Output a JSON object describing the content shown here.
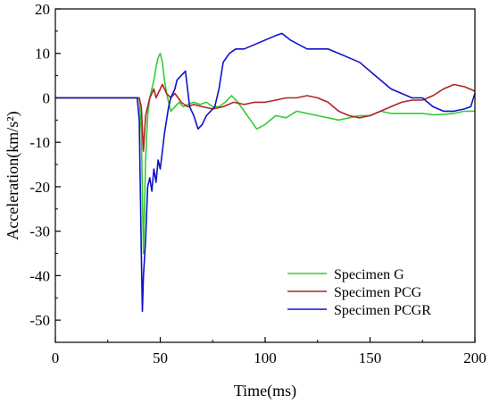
{
  "chart_data": {
    "type": "line",
    "title": "",
    "xlabel": "Time(ms)",
    "ylabel": "Acceleration(km/s²)",
    "xlim": [
      0,
      200
    ],
    "ylim": [
      -55,
      20
    ],
    "xticks": [
      0,
      50,
      100,
      150,
      200
    ],
    "yticks": [
      20,
      10,
      0,
      -10,
      -20,
      -30,
      -40,
      -50
    ],
    "grid": false,
    "legend": "bottom-right",
    "series": [
      {
        "name": "Specimen G",
        "color": "#33cc33",
        "x": [
          0,
          40,
          41,
          42,
          43,
          44,
          45,
          46,
          47,
          48,
          49,
          50,
          51,
          52,
          53,
          54,
          55,
          57,
          59,
          61,
          63,
          66,
          69,
          72,
          75,
          78,
          81,
          84,
          87,
          90,
          93,
          96,
          100,
          105,
          110,
          115,
          120,
          125,
          130,
          135,
          140,
          145,
          150,
          155,
          160,
          165,
          170,
          175,
          180,
          185,
          190,
          195,
          200
        ],
        "y": [
          0,
          0,
          -8,
          -35,
          -14,
          -4,
          0,
          2,
          4,
          7,
          9,
          10,
          8,
          4,
          1,
          -1,
          -3,
          -2,
          -1,
          -2,
          -1.5,
          -1,
          -1.5,
          -1,
          -2,
          -2,
          -1,
          0.5,
          -1,
          -3,
          -5,
          -7,
          -6,
          -4,
          -4.5,
          -3,
          -3.5,
          -4,
          -4.5,
          -5,
          -4.5,
          -4,
          -4,
          -3,
          -3.5,
          -3.5,
          -3.5,
          -3.5,
          -3.8,
          -3.7,
          -3.5,
          -3,
          -3
        ]
      },
      {
        "name": "Specimen PCG",
        "color": "#b22222",
        "x": [
          0,
          40,
          41,
          42,
          43,
          44,
          45,
          46,
          47,
          48,
          49,
          50,
          51,
          52,
          53,
          55,
          57,
          60,
          63,
          66,
          70,
          75,
          80,
          85,
          90,
          95,
          100,
          105,
          110,
          115,
          120,
          125,
          130,
          135,
          140,
          145,
          150,
          155,
          160,
          165,
          170,
          175,
          180,
          185,
          190,
          195,
          200
        ],
        "y": [
          0,
          0,
          -2,
          -12,
          -4,
          -2,
          0,
          1,
          2,
          0,
          1,
          2,
          3,
          2,
          1,
          0,
          1,
          -1,
          -2,
          -1.5,
          -2,
          -2.5,
          -2,
          -1,
          -1.5,
          -1,
          -1,
          -0.5,
          0,
          0,
          0.5,
          0,
          -1,
          -3,
          -4,
          -4.5,
          -4,
          -3,
          -2,
          -1,
          -0.5,
          -0.5,
          0.5,
          2,
          3,
          2.5,
          1.5
        ]
      },
      {
        "name": "Specimen PCGR",
        "color": "#1010cc",
        "x": [
          0,
          39,
          40,
          41,
          41.5,
          42,
          43,
          44,
          45,
          46,
          47,
          48,
          49,
          50,
          51,
          52,
          53,
          54,
          55,
          57,
          58,
          60,
          62,
          63,
          64,
          66,
          68,
          70,
          72,
          74,
          76,
          78,
          80,
          83,
          86,
          90,
          95,
          100,
          105,
          108,
          112,
          116,
          120,
          125,
          130,
          135,
          140,
          145,
          150,
          155,
          160,
          165,
          170,
          175,
          180,
          185,
          190,
          195,
          198,
          200
        ],
        "y": [
          0,
          0,
          -5,
          -35,
          -48,
          -40,
          -32,
          -20,
          -18,
          -21,
          -16,
          -19,
          -14,
          -16,
          -12,
          -8,
          -5,
          -2,
          0,
          2,
          4,
          5,
          6,
          2,
          -2,
          -4,
          -7,
          -6,
          -4,
          -3,
          -2,
          2,
          8,
          10,
          11,
          11,
          12,
          13,
          14,
          14.5,
          13,
          12,
          11,
          11,
          11,
          10,
          9,
          8,
          6,
          4,
          2,
          1,
          0,
          0,
          -2,
          -3,
          -3,
          -2.5,
          -2,
          1
        ]
      }
    ]
  }
}
